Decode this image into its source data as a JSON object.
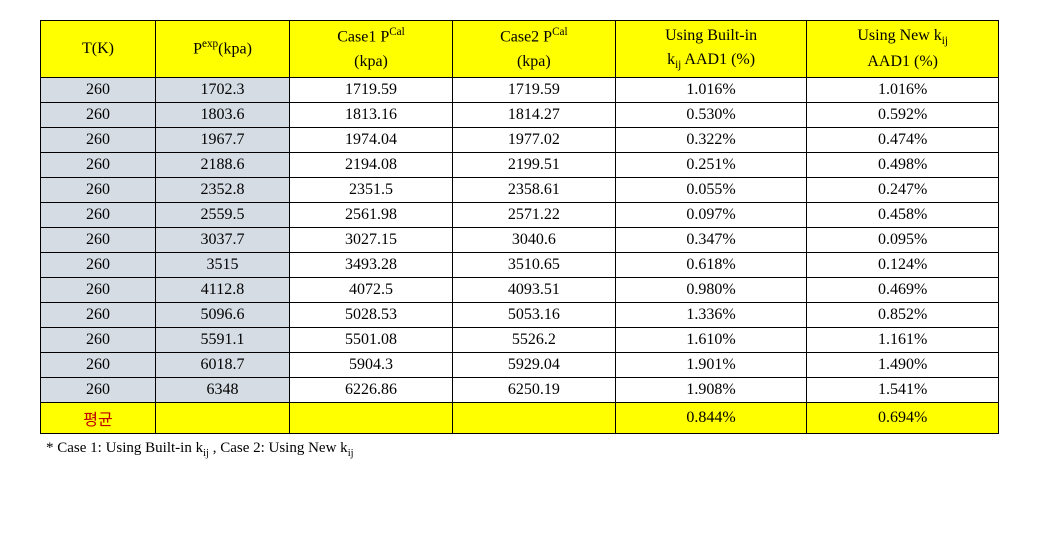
{
  "table": {
    "headers": {
      "t": "T(K)",
      "pexp_html": "P<sup>exp</sup>(kpa)",
      "case1_html": "Case1 P<sup>Cal</sup><br>(kpa)",
      "case2_html": "Case2 P<sup>Cal</sup><br>(kpa)",
      "aad1_html": "Using Built-in<br>k<sub>ij</sub> AAD1 (%)",
      "aad2_html": "Using New k<sub>ij</sub><br>AAD1 (%)"
    },
    "rows": [
      {
        "t": "260",
        "pexp": "1702.3",
        "case1": "1719.59",
        "case2": "1719.59",
        "aad1": "1.016%",
        "aad2": "1.016%"
      },
      {
        "t": "260",
        "pexp": "1803.6",
        "case1": "1813.16",
        "case2": "1814.27",
        "aad1": "0.530%",
        "aad2": "0.592%"
      },
      {
        "t": "260",
        "pexp": "1967.7",
        "case1": "1974.04",
        "case2": "1977.02",
        "aad1": "0.322%",
        "aad2": "0.474%"
      },
      {
        "t": "260",
        "pexp": "2188.6",
        "case1": "2194.08",
        "case2": "2199.51",
        "aad1": "0.251%",
        "aad2": "0.498%"
      },
      {
        "t": "260",
        "pexp": "2352.8",
        "case1": "2351.5",
        "case2": "2358.61",
        "aad1": "0.055%",
        "aad2": "0.247%"
      },
      {
        "t": "260",
        "pexp": "2559.5",
        "case1": "2561.98",
        "case2": "2571.22",
        "aad1": "0.097%",
        "aad2": "0.458%"
      },
      {
        "t": "260",
        "pexp": "3037.7",
        "case1": "3027.15",
        "case2": "3040.6",
        "aad1": "0.347%",
        "aad2": "0.095%"
      },
      {
        "t": "260",
        "pexp": "3515",
        "case1": "3493.28",
        "case2": "3510.65",
        "aad1": "0.618%",
        "aad2": "0.124%"
      },
      {
        "t": "260",
        "pexp": "4112.8",
        "case1": "4072.5",
        "case2": "4093.51",
        "aad1": "0.980%",
        "aad2": "0.469%"
      },
      {
        "t": "260",
        "pexp": "5096.6",
        "case1": "5028.53",
        "case2": "5053.16",
        "aad1": "1.336%",
        "aad2": "0.852%"
      },
      {
        "t": "260",
        "pexp": "5591.1",
        "case1": "5501.08",
        "case2": "5526.2",
        "aad1": "1.610%",
        "aad2": "1.161%"
      },
      {
        "t": "260",
        "pexp": "6018.7",
        "case1": "5904.3",
        "case2": "5929.04",
        "aad1": "1.901%",
        "aad2": "1.490%"
      },
      {
        "t": "260",
        "pexp": "6348",
        "case1": "6226.86",
        "case2": "6250.19",
        "aad1": "1.908%",
        "aad2": "1.541%"
      }
    ],
    "average": {
      "label": "평균",
      "aad1": "0.844%",
      "aad2": "0.694%"
    },
    "colors": {
      "header_bg": "#ffff00",
      "blue_bg": "#d5dce4",
      "avg_label_color": "#c00000",
      "border_color": "#000000",
      "page_bg": "#ffffff",
      "text_color": "#000000"
    },
    "column_widths_pct": [
      12,
      14,
      17,
      17,
      20,
      20
    ],
    "font_family": "Times New Roman",
    "font_size_pt": 12
  },
  "footnote_html": "* Case 1: Using Built-in k<sub>ij</sub> , Case 2: Using New k<sub>ij</sub>"
}
